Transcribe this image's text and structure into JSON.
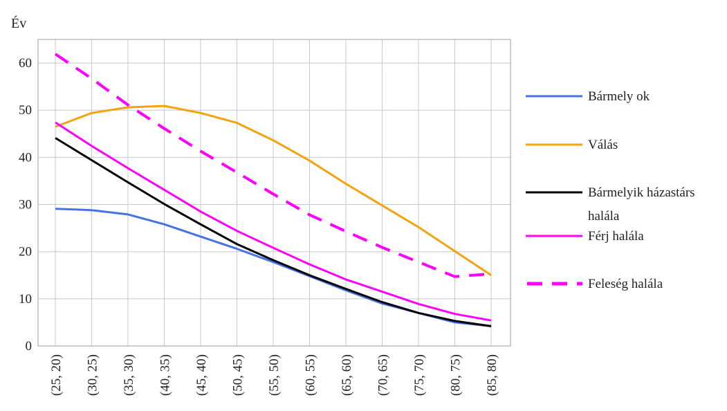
{
  "chart_data": {
    "type": "line",
    "title": "",
    "xlabel": "",
    "ylabel": "Év",
    "ylim": [
      0,
      65
    ],
    "yticks": [
      0,
      10,
      20,
      30,
      40,
      50,
      60
    ],
    "grid": true,
    "legend_position": "right",
    "categories": [
      "(25, 20)",
      "(30, 25)",
      "(35, 30)",
      "(40, 35)",
      "(45, 40)",
      "(50, 45)",
      "(55, 50)",
      "(60, 55)",
      "(65, 60)",
      "(70, 65)",
      "(75, 70)",
      "(80, 75)",
      "(85, 80)"
    ],
    "series": [
      {
        "name": "Bármely ok",
        "color": "#4472e8",
        "dash": false,
        "values": [
          29.1,
          28.8,
          27.9,
          25.8,
          23.2,
          20.6,
          17.8,
          14.8,
          11.8,
          9.0,
          7.0,
          5.0,
          4.2
        ]
      },
      {
        "name": "Válás",
        "color": "#f5a20f",
        "dash": false,
        "values": [
          46.5,
          49.4,
          50.6,
          50.9,
          49.4,
          47.3,
          43.6,
          39.3,
          34.4,
          29.8,
          25.2,
          20.1,
          15.0
        ]
      },
      {
        "name": "Bármelyik házastárs halála",
        "name_lines": [
          "Bármelyik házastárs",
          "halála"
        ],
        "color": "#000000",
        "dash": false,
        "values": [
          44.1,
          39.4,
          34.7,
          30.1,
          25.8,
          21.6,
          18.2,
          15.0,
          12.1,
          9.3,
          7.0,
          5.3,
          4.2
        ]
      },
      {
        "name": "Férj halála",
        "color": "#ff00ff",
        "dash": false,
        "values": [
          47.4,
          42.4,
          37.7,
          33.1,
          28.5,
          24.4,
          20.8,
          17.3,
          14.1,
          11.5,
          8.9,
          6.8,
          5.4
        ]
      },
      {
        "name": "Feleség halála",
        "color": "#ff00ff",
        "dash": true,
        "values": [
          61.9,
          56.7,
          51.1,
          46.1,
          41.3,
          36.8,
          32.2,
          27.8,
          24.3,
          20.9,
          17.8,
          14.7,
          15.3
        ]
      }
    ]
  }
}
